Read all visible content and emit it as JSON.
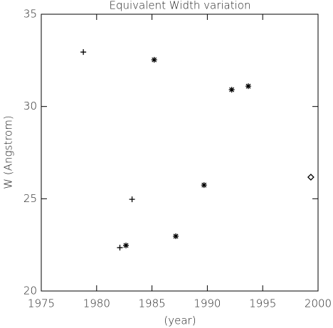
{
  "chart_data": {
    "type": "scatter",
    "title": "Equivalent Width variation",
    "xlabel": "(year)",
    "ylabel": "W (Angstrom)",
    "series": [
      {
        "marker": "plus",
        "color": "#000000",
        "x": [
          1978.8,
          1983.2,
          1982.1
        ],
        "values": [
          32.95,
          24.97,
          22.35
        ]
      },
      {
        "marker": "asterisk",
        "color": "#000000",
        "x": [
          1985.2,
          1982.65,
          1987.15,
          1989.7,
          1992.2,
          1993.7
        ],
        "values": [
          32.53,
          22.47,
          22.97,
          25.74,
          30.91,
          31.1
        ]
      },
      {
        "marker": "diamond",
        "color": "#000000",
        "x": [
          1999.35
        ],
        "values": [
          26.17
        ]
      }
    ],
    "xlim": [
      1975,
      2000
    ],
    "xticks": [
      1975,
      1980,
      1985,
      1990,
      1995,
      2000
    ],
    "ylim": [
      20,
      35
    ],
    "yticks": [
      20,
      25,
      30,
      35
    ]
  }
}
